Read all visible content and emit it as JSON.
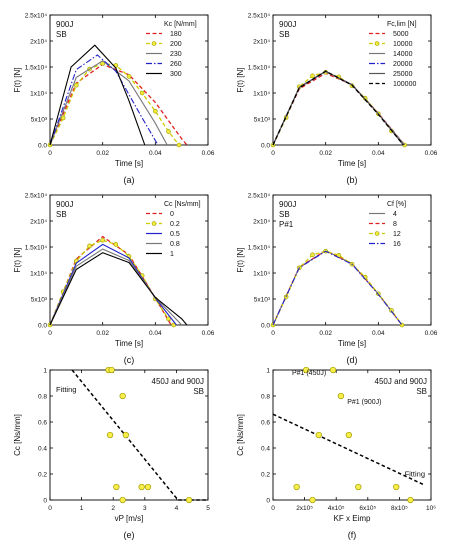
{
  "panels": [
    {
      "id": "a",
      "type": "line",
      "caption": "(a)",
      "tag": [
        "900J",
        "SB"
      ],
      "ylabel": "F(t) [N]",
      "xlabel": "Time [s]",
      "xlim": [
        0,
        0.06
      ],
      "ylim": [
        0,
        25000
      ],
      "xticks": [
        "0",
        "0.02",
        "0.04",
        "0.06"
      ],
      "yticks": [
        "0.0",
        "5x10³",
        "1x10⁴",
        "1.5x10⁴",
        "2x10⁴",
        "2.5x10⁴"
      ],
      "legend_title": "Kc [N/mm]",
      "legend_placement": "top-right",
      "series": [
        {
          "name": "180",
          "color": "#e02020",
          "style": "dash",
          "marker": "none",
          "points": [
            [
              0,
              0
            ],
            [
              0.01,
              11900
            ],
            [
              0.02,
              15500
            ],
            [
              0.03,
              13500
            ],
            [
              0.04,
              8200
            ],
            [
              0.05,
              1200
            ],
            [
              0.052,
              0
            ]
          ]
        },
        {
          "name": "200",
          "color": "#cccc00",
          "style": "dash",
          "marker": "circle",
          "points": [
            [
              0,
              0
            ],
            [
              0.005,
              5200
            ],
            [
              0.01,
              11500
            ],
            [
              0.015,
              14600
            ],
            [
              0.02,
              15700
            ],
            [
              0.025,
              15300
            ],
            [
              0.03,
              13200
            ],
            [
              0.035,
              10000
            ],
            [
              0.04,
              6500
            ],
            [
              0.045,
              2600
            ],
            [
              0.049,
              0
            ]
          ]
        },
        {
          "name": "230",
          "color": "#777777",
          "style": "solid",
          "marker": "none",
          "points": [
            [
              0,
              0
            ],
            [
              0.01,
              13000
            ],
            [
              0.02,
              16200
            ],
            [
              0.03,
              12300
            ],
            [
              0.04,
              4200
            ],
            [
              0.0445,
              0
            ]
          ]
        },
        {
          "name": "260",
          "color": "#2222cc",
          "style": "dashdot",
          "marker": "none",
          "points": [
            [
              0,
              0
            ],
            [
              0.01,
              14500
            ],
            [
              0.018,
              17300
            ],
            [
              0.025,
              14200
            ],
            [
              0.035,
              5200
            ],
            [
              0.041,
              0
            ]
          ]
        },
        {
          "name": "300",
          "color": "#000000",
          "style": "solid",
          "marker": "none",
          "points": [
            [
              0,
              0
            ],
            [
              0.008,
              15000
            ],
            [
              0.017,
              19200
            ],
            [
              0.025,
              14800
            ],
            [
              0.03,
              8500
            ],
            [
              0.036,
              0
            ]
          ]
        }
      ]
    },
    {
      "id": "b",
      "type": "line",
      "caption": "(b)",
      "tag": [
        "900J",
        "SB"
      ],
      "ylabel": "F(t) [N]",
      "xlabel": "Time [s]",
      "xlim": [
        0,
        0.06
      ],
      "ylim": [
        0,
        25000
      ],
      "xticks": [
        "0",
        "0.02",
        "0.04",
        "0.06"
      ],
      "yticks": [
        "0.0",
        "5x10³",
        "1x10⁴",
        "1.5x10⁴",
        "2x10⁴",
        "2.5x10⁴"
      ],
      "legend_title": "Fc,lim [N]",
      "legend_placement": "top-right",
      "series": [
        {
          "name": "5000",
          "color": "#e02020",
          "style": "dash",
          "marker": "none",
          "points": [
            [
              0,
              0
            ],
            [
              0.01,
              10800
            ],
            [
              0.02,
              13800
            ],
            [
              0.03,
              11600
            ],
            [
              0.04,
              6100
            ],
            [
              0.05,
              0
            ]
          ]
        },
        {
          "name": "10000",
          "color": "#cccc00",
          "style": "dash",
          "marker": "circle",
          "points": [
            [
              0,
              0
            ],
            [
              0.005,
              5300
            ],
            [
              0.01,
              11200
            ],
            [
              0.015,
              13300
            ],
            [
              0.02,
              14000
            ],
            [
              0.025,
              13100
            ],
            [
              0.03,
              11400
            ],
            [
              0.035,
              9000
            ],
            [
              0.04,
              6000
            ],
            [
              0.045,
              2700
            ],
            [
              0.05,
              0
            ]
          ]
        },
        {
          "name": "14000",
          "color": "#777777",
          "style": "solid",
          "marker": "none",
          "points": [
            [
              0,
              0
            ],
            [
              0.01,
              11000
            ],
            [
              0.02,
              14100
            ],
            [
              0.03,
              11600
            ],
            [
              0.04,
              6000
            ],
            [
              0.05,
              0
            ]
          ]
        },
        {
          "name": "20000",
          "color": "#2222cc",
          "style": "dashdot",
          "marker": "none",
          "points": [
            [
              0,
              0
            ],
            [
              0.01,
              11100
            ],
            [
              0.02,
              14200
            ],
            [
              0.03,
              11600
            ],
            [
              0.04,
              6000
            ],
            [
              0.0495,
              0
            ]
          ]
        },
        {
          "name": "25000",
          "color": "#555555",
          "style": "solid",
          "marker": "none",
          "points": [
            [
              0,
              0
            ],
            [
              0.01,
              11100
            ],
            [
              0.02,
              14200
            ],
            [
              0.03,
              11600
            ],
            [
              0.04,
              6000
            ],
            [
              0.0495,
              0
            ]
          ]
        },
        {
          "name": "100000",
          "color": "#000000",
          "style": "dash",
          "marker": "none",
          "points": [
            [
              0,
              0
            ],
            [
              0.01,
              11000
            ],
            [
              0.02,
              14200
            ],
            [
              0.03,
              11500
            ],
            [
              0.04,
              5900
            ],
            [
              0.0495,
              0
            ]
          ]
        }
      ]
    },
    {
      "id": "c",
      "type": "line",
      "caption": "(c)",
      "tag": [
        "900J",
        "SB"
      ],
      "ylabel": "F(t) [N]",
      "xlabel": "Time [s]",
      "xlim": [
        0,
        0.06
      ],
      "ylim": [
        0,
        25000
      ],
      "xticks": [
        "0",
        "0.02",
        "0.04",
        "0.06"
      ],
      "yticks": [
        "0.0",
        "5x10³",
        "1x10⁴",
        "1.5x10⁴",
        "2x10⁴",
        "2.5x10⁴"
      ],
      "legend_title": "Cc [Ns/mm]",
      "legend_placement": "top-right",
      "series": [
        {
          "name": "0",
          "color": "#e02020",
          "style": "dash",
          "marker": "none",
          "points": [
            [
              0,
              0
            ],
            [
              0.01,
              12700
            ],
            [
              0.02,
              17000
            ],
            [
              0.03,
              13500
            ],
            [
              0.04,
              5200
            ],
            [
              0.046,
              0
            ]
          ]
        },
        {
          "name": "0.2",
          "color": "#cccc00",
          "style": "dash",
          "marker": "circle",
          "points": [
            [
              0,
              0
            ],
            [
              0.005,
              6400
            ],
            [
              0.01,
              12300
            ],
            [
              0.015,
              15200
            ],
            [
              0.02,
              16300
            ],
            [
              0.025,
              15500
            ],
            [
              0.03,
              13200
            ],
            [
              0.035,
              9500
            ],
            [
              0.04,
              5000
            ],
            [
              0.045,
              1200
            ],
            [
              0.047,
              0
            ]
          ]
        },
        {
          "name": "0.5",
          "color": "#2222cc",
          "style": "solid",
          "marker": "none",
          "points": [
            [
              0,
              0
            ],
            [
              0.01,
              11900
            ],
            [
              0.02,
              15500
            ],
            [
              0.03,
              12900
            ],
            [
              0.04,
              5200
            ],
            [
              0.048,
              0
            ]
          ]
        },
        {
          "name": "0.8",
          "color": "#777777",
          "style": "solid",
          "marker": "none",
          "points": [
            [
              0,
              0
            ],
            [
              0.01,
              11300
            ],
            [
              0.02,
              14600
            ],
            [
              0.03,
              12400
            ],
            [
              0.04,
              5300
            ],
            [
              0.05,
              0
            ]
          ]
        },
        {
          "name": "1",
          "color": "#000000",
          "style": "solid",
          "marker": "none",
          "points": [
            [
              0,
              0
            ],
            [
              0.01,
              10700
            ],
            [
              0.02,
              13900
            ],
            [
              0.03,
              12000
            ],
            [
              0.04,
              5300
            ],
            [
              0.05,
              1200
            ],
            [
              0.052,
              0
            ]
          ]
        }
      ]
    },
    {
      "id": "d",
      "type": "line",
      "caption": "(d)",
      "tag": [
        "900J",
        "SB",
        "P#1"
      ],
      "ylabel": "F(t) [N]",
      "xlabel": "Time [s]",
      "xlim": [
        0,
        0.06
      ],
      "ylim": [
        0,
        25000
      ],
      "xticks": [
        "0",
        "0.02",
        "0.04",
        "0.06"
      ],
      "yticks": [
        "0.0",
        "5x10³",
        "1x10⁴",
        "1.5x10⁴",
        "2x10⁴",
        "2.5x10⁴"
      ],
      "legend_title": "Cf [%]",
      "legend_placement": "top-right",
      "series": [
        {
          "name": "4",
          "color": "#777777",
          "style": "solid",
          "marker": "none",
          "points": [
            [
              0,
              0
            ],
            [
              0.01,
              11100
            ],
            [
              0.02,
              14300
            ],
            [
              0.03,
              11800
            ],
            [
              0.04,
              6000
            ],
            [
              0.049,
              0
            ]
          ]
        },
        {
          "name": "8",
          "color": "#e02020",
          "style": "dash",
          "marker": "none",
          "points": [
            [
              0,
              0
            ],
            [
              0.01,
              11100
            ],
            [
              0.02,
              14300
            ],
            [
              0.03,
              11800
            ],
            [
              0.04,
              6000
            ],
            [
              0.049,
              0
            ]
          ]
        },
        {
          "name": "12",
          "color": "#cccc00",
          "style": "dash",
          "marker": "circle",
          "points": [
            [
              0,
              0
            ],
            [
              0.005,
              5400
            ],
            [
              0.01,
              11000
            ],
            [
              0.015,
              13500
            ],
            [
              0.02,
              14200
            ],
            [
              0.025,
              13400
            ],
            [
              0.03,
              11700
            ],
            [
              0.035,
              9200
            ],
            [
              0.04,
              6000
            ],
            [
              0.045,
              2800
            ],
            [
              0.049,
              0
            ]
          ]
        },
        {
          "name": "16",
          "color": "#2222cc",
          "style": "dashdot",
          "marker": "none",
          "points": [
            [
              0,
              0
            ],
            [
              0.01,
              11000
            ],
            [
              0.02,
              14200
            ],
            [
              0.03,
              11700
            ],
            [
              0.04,
              5900
            ],
            [
              0.049,
              0
            ]
          ]
        }
      ]
    },
    {
      "id": "e",
      "type": "scatter",
      "caption": "(e)",
      "tag": [
        "450J and 900J",
        "SB"
      ],
      "ylabel": "Cc [Ns/mm]",
      "xlabel": "vP [m/s]",
      "xlim": [
        0,
        5
      ],
      "ylim": [
        0,
        1
      ],
      "xticks": [
        "0",
        "1",
        "2",
        "3",
        "4",
        "5"
      ],
      "yticks": [
        "0",
        "0.2",
        "0.4",
        "0.6",
        "0.8",
        "1"
      ],
      "points": [
        [
          1.85,
          1
        ],
        [
          1.95,
          1
        ],
        [
          2.3,
          0.8
        ],
        [
          1.9,
          0.5
        ],
        [
          2.4,
          0.5
        ],
        [
          2.1,
          0.1
        ],
        [
          2.9,
          0.1
        ],
        [
          3.1,
          0.1
        ],
        [
          2.3,
          0
        ],
        [
          4.4,
          0
        ]
      ],
      "fit_label": "Fitting",
      "fit": [
        [
          0.7,
          1
        ],
        [
          4.05,
          0
        ],
        [
          5,
          0
        ]
      ],
      "annotations": []
    },
    {
      "id": "f",
      "type": "scatter",
      "caption": "(f)",
      "tag": [
        "450J and 900J",
        "SB"
      ],
      "ylabel": "Cc [Ns/mm]",
      "xlabel": "KF x Eimp",
      "xlim": [
        0,
        1000000
      ],
      "ylim": [
        0,
        1
      ],
      "xticks": [
        "0",
        "2x10⁵",
        "4x10⁵",
        "6x10⁵",
        "8x10⁵",
        "10⁶"
      ],
      "yticks": [
        "0",
        "0.2",
        "0.4",
        "0.6",
        "0.8",
        "1"
      ],
      "points": [
        [
          210000,
          1
        ],
        [
          380000,
          1
        ],
        [
          430000,
          0.8
        ],
        [
          290000,
          0.5
        ],
        [
          480000,
          0.5
        ],
        [
          150000,
          0.1
        ],
        [
          540000,
          0.1
        ],
        [
          780000,
          0.1
        ],
        [
          250000,
          0
        ],
        [
          870000,
          0
        ]
      ],
      "fit_label": "Fitting",
      "fit": [
        [
          0,
          0.66
        ],
        [
          950000,
          0.12
        ]
      ],
      "annotations": [
        {
          "text": "P#1 (450J)",
          "x": 120000,
          "y": 0.985
        },
        {
          "text": "P#1 (900J)",
          "x": 470000,
          "y": 0.76
        }
      ]
    }
  ]
}
